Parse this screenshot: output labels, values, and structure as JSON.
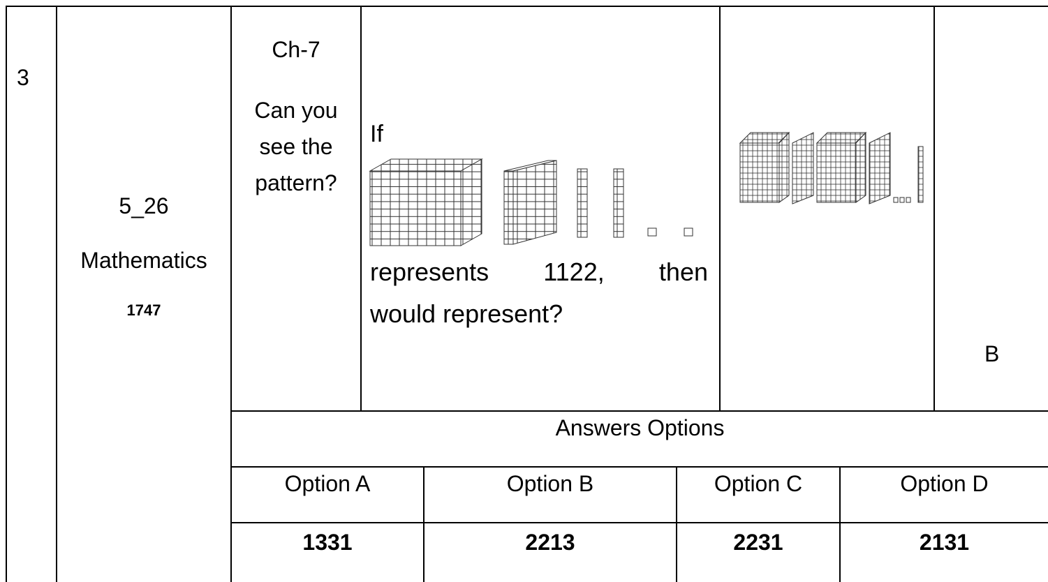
{
  "row_number": "3",
  "question_id": "5_26",
  "subject": "Mathematics",
  "code": "1747",
  "chapter": "Ch-7",
  "chapter_title": "Can you see the pattern?",
  "question": {
    "intro": "If",
    "line1": "represents 1122, then",
    "line2": "would represent?"
  },
  "answer": "B",
  "answers_header": "Answers Options",
  "options": [
    {
      "label": "Option A",
      "value": "1331"
    },
    {
      "label": "Option B",
      "value": "2213"
    },
    {
      "label": "Option C",
      "value": "2231"
    },
    {
      "label": "Option D",
      "value": "2131"
    }
  ]
}
